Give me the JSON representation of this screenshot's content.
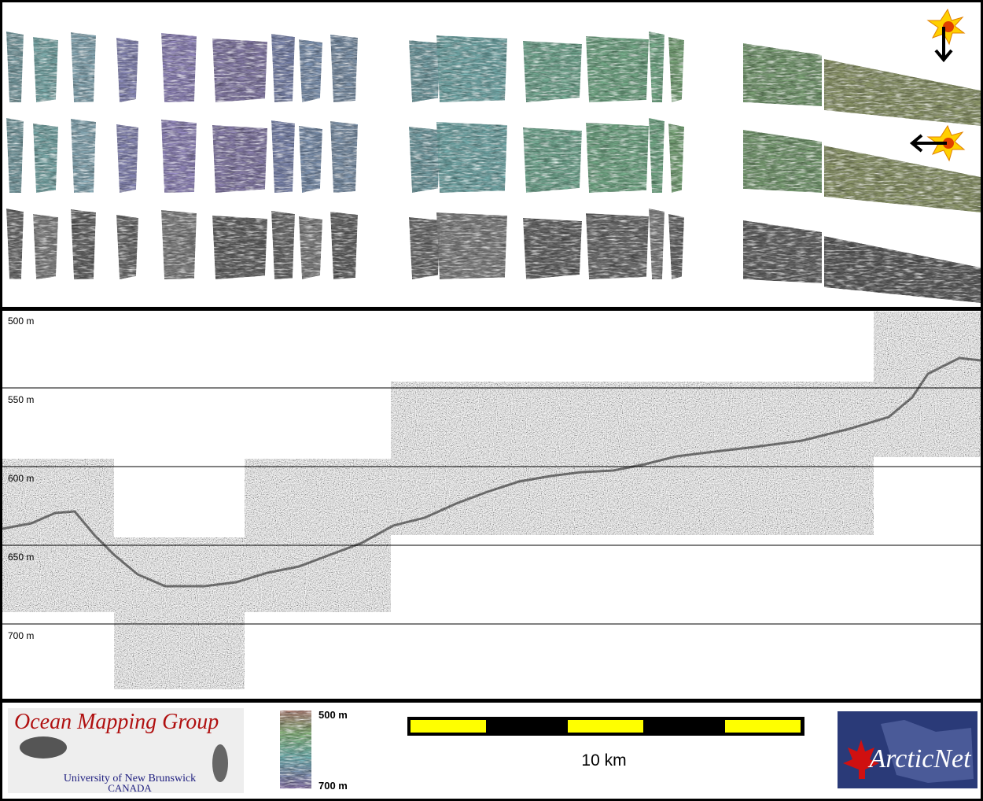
{
  "profile": {
    "depth_labels": [
      "500 m",
      "550 m",
      "600 m",
      "650 m",
      "700 m"
    ]
  },
  "legend": {
    "colorbar_labels": [
      "500 m",
      "700 m"
    ]
  },
  "scale_bar": {
    "label": "10 km"
  },
  "logos": {
    "omg": {
      "title": "Ocean Mapping Group",
      "university": "University of New Brunswick",
      "country": "CANADA"
    },
    "arcticnet": "ArcticNet"
  }
}
